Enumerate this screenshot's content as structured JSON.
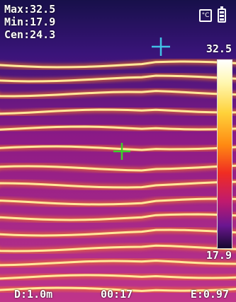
{
  "readouts": {
    "max": "Max:32.5",
    "min": "Min:17.9",
    "cen": "Cen:24.3"
  },
  "scale": {
    "max": "32.5",
    "min": "17.9",
    "palette": [
      "#ffffff",
      "#fff7b0",
      "#ffd23a",
      "#ff8a12",
      "#f02c22",
      "#c01a6e",
      "#6a1690",
      "#16082e"
    ]
  },
  "status": {
    "unit_symbol": "°C",
    "distance": "D:1.0m",
    "time": "00:17",
    "emissivity": "E:0.97"
  },
  "markers": {
    "hot_color": "#42c2e6",
    "center_color": "#3ad12a"
  },
  "icons": [
    "thermometer-unit-icon",
    "battery-icon",
    "crosshair-icon"
  ]
}
